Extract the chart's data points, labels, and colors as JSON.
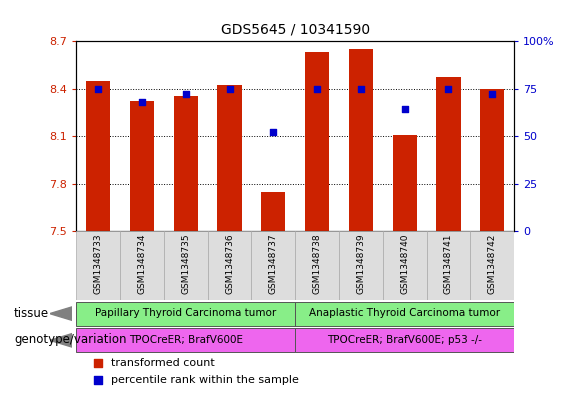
{
  "title": "GDS5645 / 10341590",
  "samples": [
    "GSM1348733",
    "GSM1348734",
    "GSM1348735",
    "GSM1348736",
    "GSM1348737",
    "GSM1348738",
    "GSM1348739",
    "GSM1348740",
    "GSM1348741",
    "GSM1348742"
  ],
  "transformed_count": [
    8.45,
    8.32,
    8.35,
    8.42,
    7.75,
    8.63,
    8.65,
    8.11,
    8.47,
    8.4
  ],
  "percentile_rank": [
    75,
    68,
    72,
    75,
    52,
    75,
    75,
    64,
    75,
    72
  ],
  "ylim_left": [
    7.5,
    8.7
  ],
  "ylim_right": [
    0,
    100
  ],
  "yticks_left": [
    7.5,
    7.8,
    8.1,
    8.4,
    8.7
  ],
  "yticks_right": [
    0,
    25,
    50,
    75,
    100
  ],
  "ytick_labels_right": [
    "0",
    "25",
    "50",
    "75",
    "100%"
  ],
  "bar_color": "#cc2200",
  "dot_color": "#0000cc",
  "bar_width": 0.55,
  "tissue_labels": [
    {
      "text": "Papillary Thyroid Carcinoma tumor",
      "start": 0,
      "end": 4,
      "color": "#88ee88"
    },
    {
      "text": "Anaplastic Thyroid Carcinoma tumor",
      "start": 5,
      "end": 9,
      "color": "#88ee88"
    }
  ],
  "genotype_labels": [
    {
      "text": "TPOCreER; BrafV600E",
      "start": 0,
      "end": 4,
      "color": "#ee66ee"
    },
    {
      "text": "TPOCreER; BrafV600E; p53 -/-",
      "start": 5,
      "end": 9,
      "color": "#ee66ee"
    }
  ],
  "tissue_row_label": "tissue",
  "genotype_row_label": "genotype/variation",
  "legend_bar_label": "transformed count",
  "legend_dot_label": "percentile rank within the sample",
  "bg_color": "#ffffff",
  "grid_color": "#000000",
  "tick_color_left": "#cc2200",
  "tick_color_right": "#0000cc",
  "sample_box_color": "#dddddd",
  "sample_box_edge": "#aaaaaa"
}
